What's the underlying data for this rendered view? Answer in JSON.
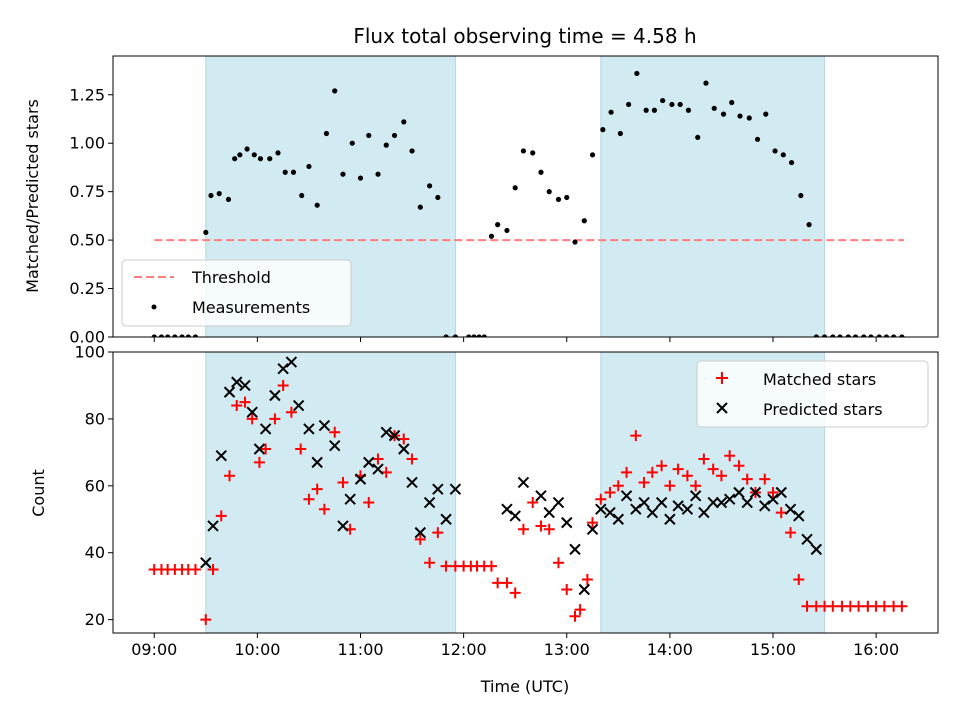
{
  "figure": {
    "title": "Flux total observing time = 4.58 h",
    "xlabel": "Time (UTC)"
  },
  "colors": {
    "shade": "#add8e6",
    "threshold": "#ff7f7f",
    "measurement": "#000000",
    "matched": "#ff0000",
    "predicted": "#000000"
  },
  "chart_data": [
    {
      "type": "scatter",
      "panel": "top",
      "ylabel": "Matched/Predicted stars",
      "xlim": [
        8.6,
        16.6
      ],
      "ylim": [
        0,
        1.45
      ],
      "yticks": [
        0.0,
        0.25,
        0.5,
        0.75,
        1.0,
        1.25
      ],
      "ytick_labels": [
        "0.00",
        "0.25",
        "0.50",
        "0.75",
        "1.00",
        "1.25"
      ],
      "legend_position": "lower-left",
      "shaded_intervals": [
        [
          9.5,
          11.92
        ],
        [
          13.33,
          15.5
        ]
      ],
      "threshold": {
        "name": "Threshold",
        "value": 0.5,
        "x_range": [
          9.0,
          16.27
        ]
      },
      "series": [
        {
          "name": "Measurements",
          "x": [
            9.0,
            9.07,
            9.13,
            9.2,
            9.27,
            9.33,
            9.4,
            9.5,
            9.55,
            9.63,
            9.72,
            9.78,
            9.83,
            9.9,
            9.97,
            10.03,
            10.12,
            10.2,
            10.27,
            10.35,
            10.43,
            10.5,
            10.58,
            10.67,
            10.75,
            10.83,
            10.92,
            11.0,
            11.08,
            11.17,
            11.25,
            11.33,
            11.42,
            11.5,
            11.58,
            11.67,
            11.75,
            11.83,
            11.92,
            12.05,
            12.1,
            12.15,
            12.2,
            12.27,
            12.33,
            12.42,
            12.5,
            12.58,
            12.67,
            12.75,
            12.83,
            12.92,
            13.0,
            13.08,
            13.17,
            13.25,
            13.35,
            13.43,
            13.52,
            13.6,
            13.68,
            13.77,
            13.85,
            13.93,
            14.02,
            14.1,
            14.18,
            14.27,
            14.35,
            14.43,
            14.52,
            14.6,
            14.68,
            14.77,
            14.85,
            14.93,
            15.02,
            15.1,
            15.18,
            15.27,
            15.35,
            15.42,
            15.5,
            15.58,
            15.65,
            15.73,
            15.8,
            15.88,
            15.95,
            16.03,
            16.1,
            16.17,
            16.25
          ],
          "y": [
            0,
            0,
            0,
            0,
            0,
            0,
            0,
            0.54,
            0.73,
            0.74,
            0.71,
            0.92,
            0.94,
            0.97,
            0.94,
            0.92,
            0.92,
            0.95,
            0.85,
            0.85,
            0.73,
            0.88,
            0.68,
            1.05,
            1.27,
            0.84,
            1.0,
            0.82,
            1.04,
            0.84,
            0.99,
            1.04,
            1.11,
            0.96,
            0.67,
            0.78,
            0.72,
            0,
            0,
            0,
            0,
            0,
            0,
            0.52,
            0.58,
            0.55,
            0.77,
            0.96,
            0.95,
            0.85,
            0.75,
            0.71,
            0.72,
            0.49,
            0.6,
            0.94,
            1.07,
            1.16,
            1.05,
            1.2,
            1.36,
            1.17,
            1.17,
            1.22,
            1.2,
            1.2,
            1.17,
            1.03,
            1.31,
            1.18,
            1.15,
            1.21,
            1.14,
            1.13,
            1.02,
            1.15,
            0.96,
            0.94,
            0.9,
            0.73,
            0.58,
            0,
            0,
            0,
            0,
            0,
            0,
            0,
            0,
            0,
            0,
            0,
            0
          ]
        }
      ]
    },
    {
      "type": "scatter",
      "panel": "bottom",
      "ylabel": "Count",
      "xlabel": "Time (UTC)",
      "xlim": [
        8.6,
        16.6
      ],
      "ylim": [
        16,
        100
      ],
      "yticks": [
        20,
        40,
        60,
        80,
        100
      ],
      "ytick_labels": [
        "20",
        "40",
        "60",
        "80",
        "100"
      ],
      "xticks": [
        9,
        10,
        11,
        12,
        13,
        14,
        15,
        16
      ],
      "xtick_labels": [
        "09:00",
        "10:00",
        "11:00",
        "12:00",
        "13:00",
        "14:00",
        "15:00",
        "16:00"
      ],
      "legend_position": "upper-right",
      "shaded_intervals": [
        [
          9.5,
          11.92
        ],
        [
          13.33,
          15.5
        ]
      ],
      "series": [
        {
          "name": "Matched stars",
          "marker": "plus",
          "x": [
            9.0,
            9.07,
            9.13,
            9.2,
            9.27,
            9.33,
            9.4,
            9.5,
            9.57,
            9.65,
            9.73,
            9.8,
            9.88,
            9.95,
            10.02,
            10.08,
            10.17,
            10.25,
            10.33,
            10.42,
            10.5,
            10.58,
            10.65,
            10.75,
            10.83,
            10.9,
            11.0,
            11.08,
            11.17,
            11.25,
            11.33,
            11.42,
            11.5,
            11.58,
            11.67,
            11.75,
            11.83,
            11.92,
            12.0,
            12.07,
            12.13,
            12.2,
            12.27,
            12.33,
            12.42,
            12.5,
            12.58,
            12.67,
            12.75,
            12.83,
            12.92,
            13.0,
            13.08,
            13.13,
            13.2,
            13.25,
            13.33,
            13.42,
            13.5,
            13.58,
            13.67,
            13.75,
            13.83,
            13.92,
            14.0,
            14.08,
            14.17,
            14.25,
            14.33,
            14.42,
            14.5,
            14.58,
            14.67,
            14.75,
            14.83,
            14.92,
            15.0,
            15.08,
            15.17,
            15.25,
            15.33,
            15.42,
            15.5,
            15.58,
            15.67,
            15.75,
            15.83,
            15.92,
            16.0,
            16.08,
            16.17,
            16.25
          ],
          "y": [
            35,
            35,
            35,
            35,
            35,
            35,
            35,
            20,
            35,
            51,
            63,
            84,
            85,
            80,
            67,
            71,
            80,
            90,
            82,
            71,
            56,
            59,
            53,
            76,
            61,
            47,
            63,
            55,
            68,
            64,
            75,
            74,
            68,
            44,
            37,
            46,
            36,
            36,
            36,
            36,
            36,
            36,
            36,
            31,
            31,
            28,
            47,
            55,
            48,
            47,
            37,
            29,
            21,
            23,
            32,
            49,
            56,
            58,
            60,
            64,
            75,
            61,
            64,
            66,
            60,
            65,
            63,
            60,
            68,
            65,
            63,
            69,
            66,
            62,
            58,
            62,
            58,
            52,
            46,
            32,
            24,
            24,
            24,
            24,
            24,
            24,
            24,
            24,
            24,
            24,
            24,
            24
          ]
        },
        {
          "name": "Predicted stars",
          "marker": "x",
          "x": [
            9.5,
            9.57,
            9.65,
            9.73,
            9.8,
            9.88,
            9.95,
            10.02,
            10.08,
            10.17,
            10.25,
            10.33,
            10.4,
            10.5,
            10.58,
            10.65,
            10.75,
            10.83,
            10.9,
            11.0,
            11.08,
            11.17,
            11.25,
            11.33,
            11.42,
            11.5,
            11.58,
            11.67,
            11.75,
            11.83,
            11.92,
            12.42,
            12.5,
            12.58,
            12.75,
            12.83,
            12.92,
            13.0,
            13.08,
            13.17,
            13.25,
            13.33,
            13.42,
            13.5,
            13.58,
            13.67,
            13.75,
            13.83,
            13.92,
            14.0,
            14.08,
            14.17,
            14.25,
            14.33,
            14.42,
            14.5,
            14.58,
            14.67,
            14.75,
            14.83,
            14.92,
            15.0,
            15.08,
            15.17,
            15.25,
            15.33,
            15.42
          ],
          "y": [
            37,
            48,
            69,
            88,
            91,
            90,
            82,
            71,
            77,
            87,
            95,
            97,
            84,
            77,
            67,
            78,
            72,
            48,
            56,
            62,
            67,
            65,
            76,
            75,
            71,
            61,
            46,
            55,
            59,
            50,
            59,
            53,
            51,
            61,
            57,
            52,
            55,
            49,
            41,
            29,
            47,
            53,
            52,
            50,
            57,
            53,
            55,
            52,
            55,
            50,
            54,
            53,
            57,
            52,
            55,
            55,
            56,
            58,
            55,
            58,
            54,
            56,
            58,
            53,
            51,
            44,
            41
          ]
        }
      ]
    }
  ]
}
